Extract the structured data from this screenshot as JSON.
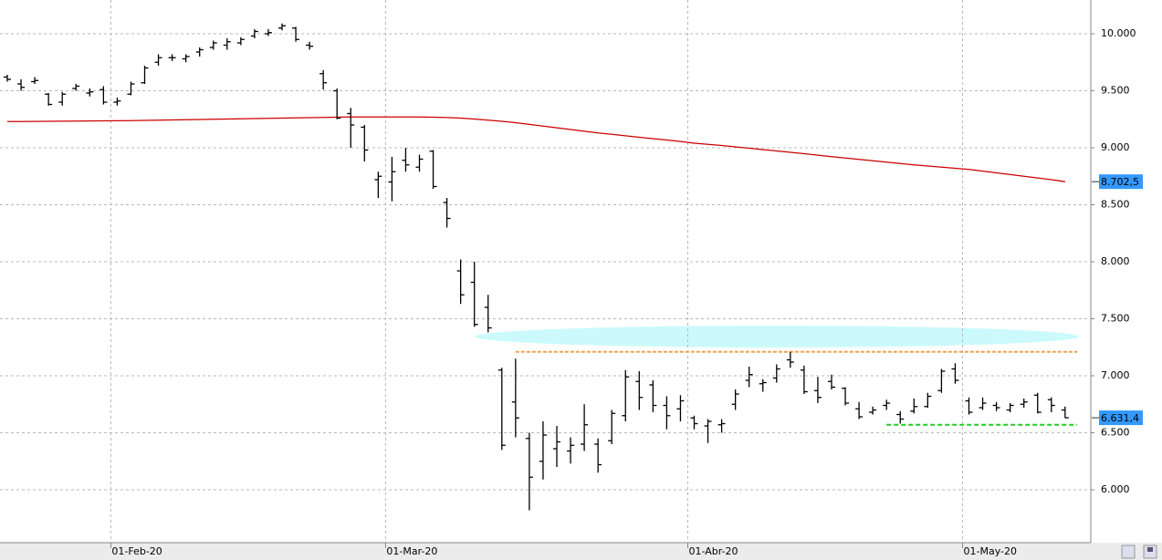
{
  "chart_data": {
    "type": "ohlc",
    "categories": [
      null,
      null,
      null,
      null,
      null,
      null,
      null,
      null,
      "01-Feb-20",
      null,
      null,
      null,
      null,
      null,
      null,
      null,
      null,
      null,
      null,
      null,
      null,
      null,
      null,
      null,
      null,
      null,
      null,
      null,
      "01-Mar-20",
      null,
      null,
      null,
      null,
      null,
      null,
      null,
      null,
      null,
      null,
      null,
      null,
      null,
      null,
      null,
      null,
      null,
      null,
      null,
      null,
      null,
      "01-Abr-20",
      null,
      null,
      null,
      null,
      null,
      null,
      null,
      null,
      null,
      null,
      null,
      null,
      null,
      null,
      null,
      null,
      null,
      null,
      null,
      "01-May-20",
      null,
      null,
      null,
      null,
      null,
      null,
      null
    ],
    "open": [
      9620,
      9560,
      9580,
      9470,
      9400,
      9520,
      9480,
      9510,
      9400,
      9470,
      9570,
      9750,
      9790,
      9780,
      9840,
      9880,
      9900,
      9920,
      9980,
      10000,
      10050,
      10050,
      9900,
      9650,
      9500,
      9300,
      9180,
      8720,
      8700,
      8890,
      8830,
      8970,
      8520,
      7920,
      7820,
      7600,
      7050,
      6770,
      6450,
      6250,
      6360,
      6340,
      6400,
      6400,
      6430,
      6650,
      6950,
      6920,
      6740,
      6710,
      6630,
      6560,
      6570,
      6750,
      6960,
      6930,
      6980,
      7140,
      7050,
      6870,
      6950,
      6890,
      6710,
      6680,
      6740,
      6660,
      6690,
      6730,
      6870,
      7060,
      6780,
      6720,
      6740,
      6700,
      6750,
      6830,
      6790,
      6700
    ],
    "high": [
      9640,
      9600,
      9620,
      9480,
      9490,
      9560,
      9520,
      9540,
      9440,
      9580,
      9720,
      9820,
      9820,
      9820,
      9880,
      9940,
      9960,
      9970,
      10040,
      10040,
      10090,
      10060,
      9930,
      9680,
      9520,
      9350,
      9200,
      8790,
      8920,
      9000,
      8940,
      8980,
      8560,
      8020,
      8000,
      7710,
      7070,
      7150,
      6500,
      6600,
      6560,
      6460,
      6750,
      6450,
      6700,
      7050,
      7040,
      6960,
      6820,
      6830,
      6650,
      6620,
      6620,
      6880,
      7080,
      6970,
      7100,
      7210,
      7090,
      6990,
      7010,
      6900,
      6770,
      6730,
      6790,
      6690,
      6800,
      6850,
      7060,
      7110,
      6810,
      6810,
      6770,
      6760,
      6800,
      6850,
      6810,
      6730
    ],
    "low": [
      9580,
      9500,
      9560,
      9370,
      9370,
      9500,
      9450,
      9380,
      9370,
      9460,
      9560,
      9720,
      9760,
      9750,
      9800,
      9860,
      9860,
      9900,
      9960,
      9980,
      10030,
      9930,
      9860,
      9510,
      9250,
      9000,
      8880,
      8560,
      8530,
      8790,
      8790,
      8640,
      8300,
      7630,
      7430,
      7380,
      6350,
      6460,
      5820,
      6090,
      6200,
      6230,
      6340,
      6150,
      6400,
      6600,
      6700,
      6680,
      6530,
      6600,
      6530,
      6410,
      6500,
      6700,
      6900,
      6860,
      6940,
      7070,
      6840,
      6760,
      6880,
      6740,
      6620,
      6660,
      6700,
      6580,
      6670,
      6720,
      6850,
      6930,
      6660,
      6700,
      6690,
      6680,
      6720,
      6670,
      6680,
      6630
    ],
    "close": [
      9600,
      9530,
      9590,
      9380,
      9470,
      9540,
      9490,
      9400,
      9410,
      9560,
      9700,
      9790,
      9790,
      9800,
      9860,
      9920,
      9930,
      9950,
      10020,
      10010,
      10070,
      9950,
      9890,
      9570,
      9260,
      9200,
      8980,
      8750,
      8790,
      8850,
      8900,
      8660,
      8380,
      7710,
      7450,
      7420,
      6390,
      6630,
      6110,
      6480,
      6420,
      6390,
      6570,
      6220,
      6670,
      6990,
      6810,
      6740,
      6650,
      6780,
      6580,
      6600,
      6580,
      6840,
      7010,
      6940,
      7060,
      7120,
      6860,
      6810,
      6900,
      6760,
      6640,
      6700,
      6760,
      6620,
      6730,
      6820,
      7040,
      6960,
      6680,
      6760,
      6720,
      6740,
      6770,
      6680,
      6740,
      6631.4
    ],
    "color": "#000000",
    "moving_average": {
      "color": "#cc0000",
      "values": [
        9230,
        9230,
        9231,
        9232,
        9233,
        9234,
        9235,
        9236,
        9237,
        9238,
        9240,
        9242,
        9244,
        9246,
        9248,
        9250,
        9252,
        9254,
        9256,
        9258,
        9260,
        9262,
        9264,
        9266,
        9268,
        9270,
        9270,
        9270,
        9270,
        9270,
        9270,
        9268,
        9265,
        9260,
        9252,
        9242,
        9232,
        9220,
        9205,
        9190,
        9175,
        9160,
        9145,
        9130,
        9118,
        9105,
        9092,
        9080,
        9068,
        9055,
        9040,
        9030,
        9020,
        9008,
        8996,
        8984,
        8972,
        8960,
        8948,
        8935,
        8922,
        8910,
        8898,
        8886,
        8874,
        8862,
        8850,
        8840,
        8830,
        8820,
        8810,
        8795,
        8780,
        8765,
        8750,
        8735,
        8720,
        8702.5
      ]
    },
    "levels": [
      {
        "value": 7210,
        "color": "#f0a050",
        "from": 37
      },
      {
        "value": 6570,
        "color": "#22cc22",
        "from": 64
      }
    ],
    "price_tags": [
      {
        "value": 8702.5,
        "label": "8.702,5"
      },
      {
        "value": 6631.4,
        "label": "6.631,4"
      }
    ],
    "ylim": [
      5536,
      10296
    ],
    "yticks": [
      {
        "value": 6000,
        "label": "6.000"
      },
      {
        "value": 6500,
        "label": "6.500"
      },
      {
        "value": 7000,
        "label": "7.000"
      },
      {
        "value": 7500,
        "label": "7.500"
      },
      {
        "value": 8000,
        "label": "8.000"
      },
      {
        "value": 8500,
        "label": "8.500"
      },
      {
        "value": 9000,
        "label": "9.000"
      },
      {
        "value": 9500,
        "label": "9.500"
      },
      {
        "value": 10000,
        "label": "10.000"
      }
    ],
    "grid": true
  }
}
